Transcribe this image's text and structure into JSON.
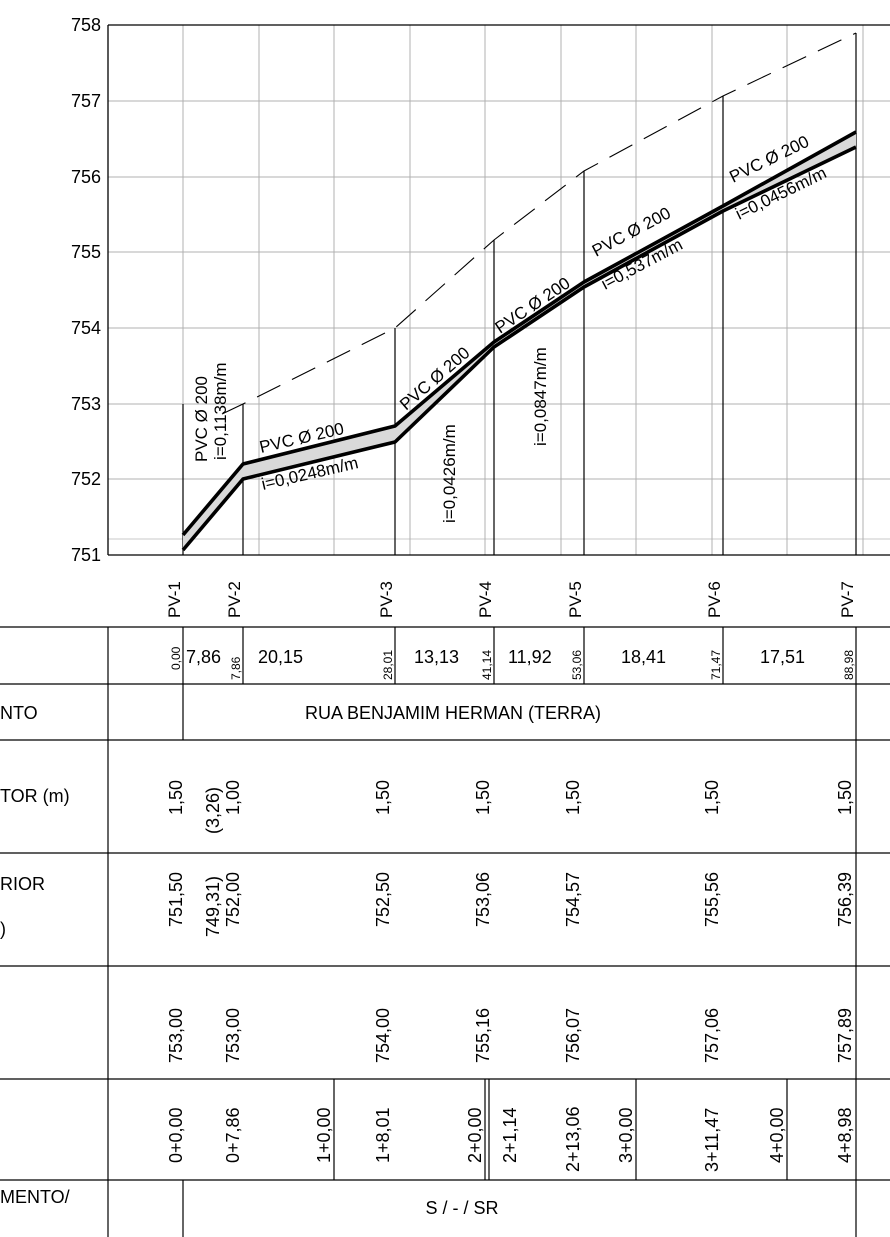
{
  "profile": {
    "elevation_ticks": [
      "751",
      "752",
      "753",
      "754",
      "755",
      "756",
      "757",
      "758"
    ],
    "pipe_segments": [
      {
        "diameter_label": "PVC Ø 200",
        "slope_label": "i=0,1138m/m"
      },
      {
        "diameter_label": "PVC Ø 200",
        "slope_label": "i=0,0248m/m"
      },
      {
        "diameter_label": "PVC Ø 200",
        "slope_label": "i=0,0426m/m"
      },
      {
        "diameter_label": "PVC Ø 200",
        "slope_label": "i=0,0847m/m"
      },
      {
        "diameter_label": "PVC Ø 200",
        "slope_label": "i=0,537m/m"
      },
      {
        "diameter_label": "PVC Ø 200",
        "slope_label": "i=0,0456m/m"
      }
    ],
    "manholes": [
      "PV-1",
      "PV-2",
      "PV-3",
      "PV-4",
      "PV-5",
      "PV-6",
      "PV-7"
    ]
  },
  "table": {
    "row_labels": {
      "street": "NTO",
      "depth": "TOR (m)",
      "invert_line1": "RIOR",
      "invert_line2": ")",
      "pavement": "MENTO/"
    },
    "distances": {
      "cumulative": [
        "0,00",
        "7,86",
        "28,01",
        "41,14",
        "53,06",
        "71,47",
        "88,98"
      ],
      "segments": [
        "7,86",
        "20,15",
        "13,13",
        "11,92",
        "18,41",
        "17,51"
      ]
    },
    "street_name": "RUA BENJAMIM HERMAN (TERRA)",
    "depths": [
      "1,50",
      "(3,26)",
      "1,00",
      "1,50",
      "1,50",
      "1,50",
      "1,50",
      "1,50"
    ],
    "inverts": [
      "751,50",
      "749,31)",
      "752,00",
      "752,50",
      "753,06",
      "754,57",
      "755,56",
      "756,39"
    ],
    "ground": [
      "753,00",
      "753,00",
      "754,00",
      "755,16",
      "756,07",
      "757,06",
      "757,89"
    ],
    "stations": [
      "0+0,00",
      "0+7,86",
      "1+0,00",
      "1+8,01",
      "2+0,00",
      "2+1,14",
      "2+13,06",
      "3+0,00",
      "3+11,47",
      "4+0,00",
      "4+8,98"
    ],
    "pavement_value": "S / - / SR"
  }
}
